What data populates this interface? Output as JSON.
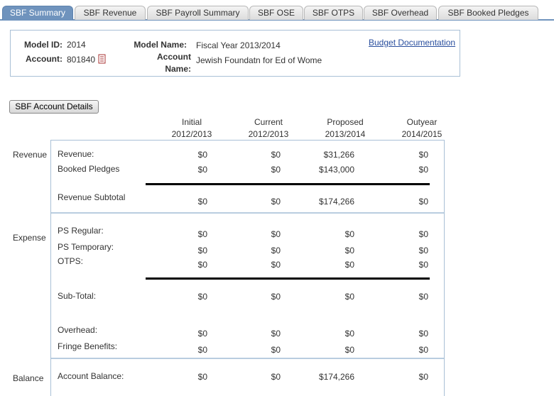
{
  "tabs": [
    "SBF Summary",
    "SBF Revenue",
    "SBF Payroll Summary",
    "SBF OSE",
    "SBF OTPS",
    "SBF Overhead",
    "SBF Booked Pledges"
  ],
  "header": {
    "model_id_label": "Model ID:",
    "model_id": "2014",
    "account_label": "Account:",
    "account": "801840",
    "model_name_label": "Model Name:",
    "model_name": "Fiscal Year 2013/2014",
    "account_name_label": "Account Name:",
    "account_name": "Jewish Foundatn for Ed of Wome",
    "link": "Budget Documentation"
  },
  "button": "SBF Account Details",
  "columns": [
    {
      "line1": "Initial",
      "line2": "2012/2013"
    },
    {
      "line1": "Current",
      "line2": "2012/2013"
    },
    {
      "line1": "Proposed",
      "line2": "2013/2014"
    },
    {
      "line1": "Outyear",
      "line2": "2014/2015"
    }
  ],
  "sections": [
    {
      "name": "Revenue",
      "rows": [
        {
          "label": "Revenue:",
          "values": [
            "$0",
            "$0",
            "$31,266",
            "$0"
          ]
        },
        {
          "label": "Booked Pledges",
          "values": [
            "$0",
            "$0",
            "$143,000",
            "$0"
          ]
        },
        {
          "label": "Revenue Subtotal",
          "values": [
            "$0",
            "$0",
            "$174,266",
            "$0"
          ]
        }
      ]
    },
    {
      "name": "Expense",
      "rows": [
        {
          "label": "PS Regular:",
          "values": [
            "$0",
            "$0",
            "$0",
            "$0"
          ]
        },
        {
          "label": "PS Temporary:",
          "values": [
            "$0",
            "$0",
            "$0",
            "$0"
          ]
        },
        {
          "label": "OTPS:",
          "values": [
            "$0",
            "$0",
            "$0",
            "$0"
          ]
        },
        {
          "label": "Sub-Total:",
          "values": [
            "$0",
            "$0",
            "$0",
            "$0"
          ]
        },
        {
          "label": "Overhead:",
          "values": [
            "$0",
            "$0",
            "$0",
            "$0"
          ]
        },
        {
          "label": "Fringe Benefits:",
          "values": [
            "$0",
            "$0",
            "$0",
            "$0"
          ]
        }
      ]
    },
    {
      "name": "Balance",
      "rows": [
        {
          "label": "Account Balance:",
          "values": [
            "$0",
            "$0",
            "$174,266",
            "$0"
          ]
        }
      ]
    }
  ]
}
